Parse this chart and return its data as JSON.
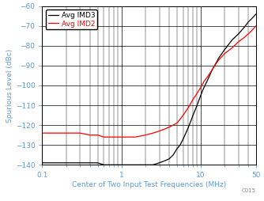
{
  "xlabel": "Center of Two Input Test Frequencies (MHz)",
  "ylabel": "Spurious Level (dBc)",
  "xlim": [
    0.1,
    50
  ],
  "ylim": [
    -140,
    -60
  ],
  "yticks": [
    -140,
    -130,
    -120,
    -110,
    -100,
    -90,
    -80,
    -70,
    -60
  ],
  "xticks_major": [
    0.1,
    1,
    10,
    50
  ],
  "xticks_minor": [
    0.2,
    0.3,
    0.4,
    0.5,
    0.6,
    0.7,
    0.8,
    0.9,
    2,
    3,
    4,
    5,
    6,
    7,
    8,
    9,
    20,
    30,
    40
  ],
  "xtick_labels": {
    "0.1": "0.1",
    "1": "1",
    "10": "10",
    "50": "50"
  },
  "legend_labels": [
    "Avg IMD3",
    "Avg IMD2"
  ],
  "watermark": "C015",
  "label_color": "#5B9BD5",
  "tick_color": "#5B9BD5",
  "imd3_x": [
    0.1,
    0.15,
    0.2,
    0.25,
    0.3,
    0.4,
    0.5,
    0.6,
    0.7,
    0.8,
    0.9,
    1.0,
    1.2,
    1.5,
    2.0,
    2.5,
    3.0,
    3.5,
    4.0,
    4.5,
    5.0,
    5.5,
    6.0,
    6.5,
    7.0,
    7.5,
    8.0,
    9.0,
    10.0,
    11.0,
    12.0,
    14.0,
    15.0,
    17.0,
    20.0,
    25.0,
    30.0,
    35.0,
    40.0,
    45.0,
    50.0
  ],
  "imd3_y": [
    -139,
    -139,
    -139,
    -139,
    -139,
    -139,
    -139,
    -140,
    -140,
    -140,
    -140,
    -140,
    -140,
    -140,
    -140,
    -140,
    -139,
    -138,
    -137,
    -135,
    -132,
    -130,
    -127,
    -124,
    -121,
    -118,
    -115,
    -110,
    -105,
    -101,
    -98,
    -92,
    -90,
    -86,
    -82,
    -77,
    -74,
    -71,
    -68,
    -66,
    -64
  ],
  "imd2_x": [
    0.1,
    0.15,
    0.2,
    0.25,
    0.3,
    0.4,
    0.5,
    0.6,
    0.7,
    0.8,
    0.9,
    1.0,
    1.2,
    1.5,
    2.0,
    2.5,
    3.0,
    3.5,
    4.0,
    4.5,
    5.0,
    5.5,
    6.0,
    6.5,
    7.0,
    7.5,
    8.0,
    9.0,
    10.0,
    11.0,
    12.0,
    14.0,
    15.0,
    17.0,
    20.0,
    25.0,
    30.0,
    35.0,
    40.0,
    45.0,
    50.0
  ],
  "imd2_y": [
    -124,
    -124,
    -124,
    -124,
    -124,
    -125,
    -125,
    -126,
    -126,
    -126,
    -126,
    -126,
    -126,
    -126,
    -125,
    -124,
    -123,
    -122,
    -121,
    -120,
    -119,
    -117,
    -115,
    -113,
    -111,
    -109,
    -107,
    -104,
    -101,
    -98,
    -96,
    -92,
    -90,
    -87,
    -84,
    -81,
    -78,
    -76,
    -74,
    -72,
    -70
  ]
}
